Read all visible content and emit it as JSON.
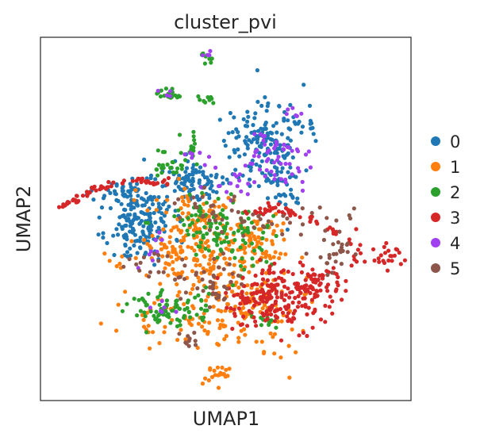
{
  "chart_data": {
    "type": "scatter",
    "title": "cluster_pvi",
    "xlabel": "UMAP1",
    "ylabel": "UMAP2",
    "xlim": [
      0,
      100
    ],
    "ylim": [
      0,
      100
    ],
    "grid": false,
    "legend_position": "right",
    "series": [
      {
        "name": "0",
        "color": "#1f77b4",
        "clusters": [
          {
            "cx": 27,
            "cy": 50,
            "sx": 4.5,
            "sy": 6,
            "n": 190,
            "seed": 11
          },
          {
            "cx": 42,
            "cy": 60,
            "sx": 5,
            "sy": 3,
            "n": 90,
            "seed": 12
          },
          {
            "cx": 60,
            "cy": 71,
            "sx": 5,
            "sy": 6,
            "n": 140,
            "seed": 13
          },
          {
            "cx": 67,
            "cy": 60,
            "sx": 3,
            "sy": 4,
            "n": 40,
            "seed": 14
          },
          {
            "cx": 72,
            "cy": 76,
            "sx": 2,
            "sy": 2,
            "n": 15,
            "seed": 15
          },
          {
            "cx": 21,
            "cy": 57,
            "sx": 4,
            "sy": 0.8,
            "n": 20,
            "seed": 16
          }
        ]
      },
      {
        "name": "1",
        "color": "#ff7f0e",
        "clusters": [
          {
            "cx": 42,
            "cy": 43,
            "sx": 8,
            "sy": 7,
            "n": 220,
            "seed": 21
          },
          {
            "cx": 56,
            "cy": 28,
            "sx": 7,
            "sy": 8,
            "n": 150,
            "seed": 22
          },
          {
            "cx": 38,
            "cy": 22,
            "sx": 8,
            "sy": 3,
            "n": 50,
            "seed": 23
          },
          {
            "cx": 47,
            "cy": 7,
            "sx": 2,
            "sy": 1.5,
            "n": 18,
            "seed": 24
          },
          {
            "cx": 60,
            "cy": 43,
            "sx": 3,
            "sy": 3,
            "n": 40,
            "seed": 25
          }
        ]
      },
      {
        "name": "2",
        "color": "#2ca02c",
        "clusters": [
          {
            "cx": 35,
            "cy": 25,
            "sx": 6,
            "sy": 2.5,
            "n": 80,
            "seed": 31
          },
          {
            "cx": 45,
            "cy": 49,
            "sx": 6,
            "sy": 4,
            "n": 70,
            "seed": 32
          },
          {
            "cx": 55,
            "cy": 43,
            "sx": 4,
            "sy": 5,
            "n": 50,
            "seed": 33
          },
          {
            "cx": 35,
            "cy": 65,
            "sx": 3,
            "sy": 2,
            "n": 25,
            "seed": 34
          },
          {
            "cx": 35,
            "cy": 84,
            "sx": 2,
            "sy": 1.2,
            "n": 20,
            "seed": 35
          },
          {
            "cx": 45,
            "cy": 83,
            "sx": 1.5,
            "sy": 0.6,
            "n": 10,
            "seed": 36
          },
          {
            "cx": 45,
            "cy": 94,
            "sx": 1,
            "sy": 0.8,
            "n": 10,
            "seed": 37
          },
          {
            "cx": 60,
            "cy": 22,
            "sx": 2,
            "sy": 1.5,
            "n": 12,
            "seed": 38
          },
          {
            "cx": 40,
            "cy": 71,
            "sx": 2,
            "sy": 2,
            "n": 12,
            "seed": 39
          }
        ]
      },
      {
        "name": "3",
        "color": "#d62728",
        "clusters": [
          {
            "cx": 63,
            "cy": 28,
            "sx": 7,
            "sy": 4,
            "n": 190,
            "seed": 41
          },
          {
            "cx": 73,
            "cy": 32,
            "sx": 5,
            "sy": 3,
            "n": 70,
            "seed": 42
          },
          {
            "cx": 93,
            "cy": 40,
            "sx": 2.5,
            "sy": 2.5,
            "n": 22,
            "seed": 43
          },
          {
            "cx": 85,
            "cy": 40,
            "sx": 2,
            "sy": 3,
            "n": 12,
            "seed": 44
          }
        ],
        "arc": {
          "x0": 5,
          "y0": 53,
          "x1": 35,
          "y1": 60,
          "n": 60,
          "seed": 45
        },
        "arc2": {
          "x0": 55,
          "y0": 52,
          "x1": 80,
          "y1": 46,
          "n": 45,
          "seed": 46
        }
      },
      {
        "name": "4",
        "color": "#a040f0",
        "clusters": [
          {
            "cx": 63,
            "cy": 66,
            "sx": 5,
            "sy": 4,
            "n": 55,
            "seed": 51
          },
          {
            "cx": 51,
            "cy": 59,
            "sx": 3,
            "sy": 2,
            "n": 14,
            "seed": 52
          },
          {
            "cx": 43,
            "cy": 67,
            "sx": 3,
            "sy": 2,
            "n": 8,
            "seed": 53
          },
          {
            "cx": 30,
            "cy": 42,
            "sx": 2,
            "sy": 3,
            "n": 8,
            "seed": 54
          },
          {
            "cx": 33,
            "cy": 25,
            "sx": 3,
            "sy": 1,
            "n": 6,
            "seed": 55
          },
          {
            "cx": 68,
            "cy": 79,
            "sx": 1.5,
            "sy": 1,
            "n": 6,
            "seed": 56
          },
          {
            "cx": 45,
            "cy": 95,
            "sx": 0.8,
            "sy": 0.5,
            "n": 4,
            "seed": 57
          },
          {
            "cx": 33,
            "cy": 85,
            "sx": 0.8,
            "sy": 0.6,
            "n": 4,
            "seed": 58
          }
        ]
      },
      {
        "name": "5",
        "color": "#8c564b",
        "clusters": [
          {
            "cx": 45,
            "cy": 33,
            "sx": 5,
            "sy": 4,
            "n": 40,
            "seed": 61
          },
          {
            "cx": 62,
            "cy": 50,
            "sx": 10,
            "sy": 2,
            "n": 40,
            "seed": 62
          },
          {
            "cx": 78,
            "cy": 40,
            "sx": 3,
            "sy": 3,
            "n": 25,
            "seed": 63
          },
          {
            "cx": 30,
            "cy": 37,
            "sx": 3,
            "sy": 3,
            "n": 15,
            "seed": 64
          },
          {
            "cx": 40,
            "cy": 16,
            "sx": 2,
            "sy": 2,
            "n": 10,
            "seed": 65
          },
          {
            "cx": 45,
            "cy": 54,
            "sx": 5,
            "sy": 2,
            "n": 12,
            "seed": 66
          }
        ]
      }
    ],
    "legend": [
      "0",
      "1",
      "2",
      "3",
      "4",
      "5"
    ]
  }
}
